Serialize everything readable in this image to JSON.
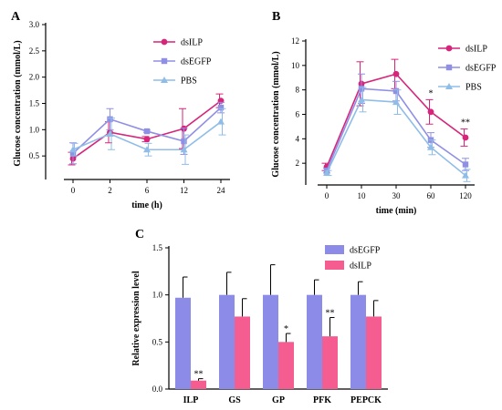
{
  "chart_data": [
    {
      "panel": "A",
      "type": "line",
      "xlabel": "time (h)",
      "ylabel": "Glucose concentration (mmol/L)",
      "categories": [
        "0",
        "2",
        "6",
        "12",
        "24"
      ],
      "ylim": [
        0,
        3.0
      ],
      "yticks": [
        "0.5",
        "1.0",
        "1.5",
        "2.0",
        "2.5",
        "3.0"
      ],
      "series": [
        {
          "name": "dsILP",
          "color": "#d6257a",
          "marker": "circle",
          "values": [
            0.45,
            0.95,
            0.82,
            1.02,
            1.55
          ],
          "errors": [
            0.12,
            0.2,
            0.05,
            0.38,
            0.13
          ]
        },
        {
          "name": "dsEGFP",
          "color": "#8f8fe6",
          "marker": "square",
          "values": [
            0.55,
            1.2,
            0.97,
            0.78,
            1.42
          ],
          "errors": [
            0.2,
            0.2,
            0.02,
            0.25,
            0.1
          ]
        },
        {
          "name": "PBS",
          "color": "#8fbde8",
          "marker": "triangle",
          "values": [
            0.62,
            0.92,
            0.62,
            0.62,
            1.15
          ],
          "errors": [
            0.12,
            0.3,
            0.12,
            0.28,
            0.25
          ]
        }
      ]
    },
    {
      "panel": "B",
      "type": "line",
      "xlabel": "time (min)",
      "ylabel": "Glucose concentration (mmol/L)",
      "categories": [
        "0",
        "10",
        "30",
        "60",
        "120"
      ],
      "ylim": [
        0,
        12
      ],
      "yticks": [
        "2",
        "4",
        "6",
        "8",
        "10",
        "12"
      ],
      "series": [
        {
          "name": "dsILP",
          "color": "#d6257a",
          "marker": "circle",
          "values": [
            1.7,
            8.5,
            9.3,
            6.2,
            4.1
          ],
          "errors": [
            0.3,
            1.8,
            1.2,
            1.0,
            0.7
          ]
        },
        {
          "name": "dsEGFP",
          "color": "#8f8fe6",
          "marker": "square",
          "values": [
            1.4,
            8.1,
            7.9,
            3.9,
            1.9
          ],
          "errors": [
            0.2,
            1.2,
            0.8,
            0.6,
            0.5
          ]
        },
        {
          "name": "PBS",
          "color": "#8fbde8",
          "marker": "triangle",
          "values": [
            1.2,
            7.2,
            7.0,
            3.3,
            1.0
          ],
          "errors": [
            0.2,
            1.0,
            1.0,
            0.6,
            0.5
          ]
        }
      ],
      "annotations": [
        {
          "category": "60",
          "text": "*"
        },
        {
          "category": "120",
          "text": "**"
        }
      ]
    },
    {
      "panel": "C",
      "type": "bar",
      "ylabel": "Relative expression level",
      "categories": [
        "ILP",
        "GS",
        "GP",
        "PFK",
        "PEPCK"
      ],
      "ylim": [
        0,
        1.5
      ],
      "yticks": [
        "0.0",
        "0.5",
        "1.0",
        "1.5"
      ],
      "series": [
        {
          "name": "dsEGFP",
          "color": "#8c8ce8",
          "values": [
            0.97,
            1.0,
            1.0,
            1.0,
            1.0
          ],
          "errors": [
            0.22,
            0.24,
            0.32,
            0.16,
            0.14
          ]
        },
        {
          "name": "dsILP",
          "color": "#f55c8f",
          "values": [
            0.09,
            0.77,
            0.5,
            0.56,
            0.77
          ],
          "errors": [
            0.02,
            0.19,
            0.09,
            0.2,
            0.17
          ]
        }
      ],
      "annotations": [
        {
          "category": "ILP",
          "text": "**"
        },
        {
          "category": "GP",
          "text": "*"
        },
        {
          "category": "PFK",
          "text": "**"
        }
      ]
    }
  ]
}
